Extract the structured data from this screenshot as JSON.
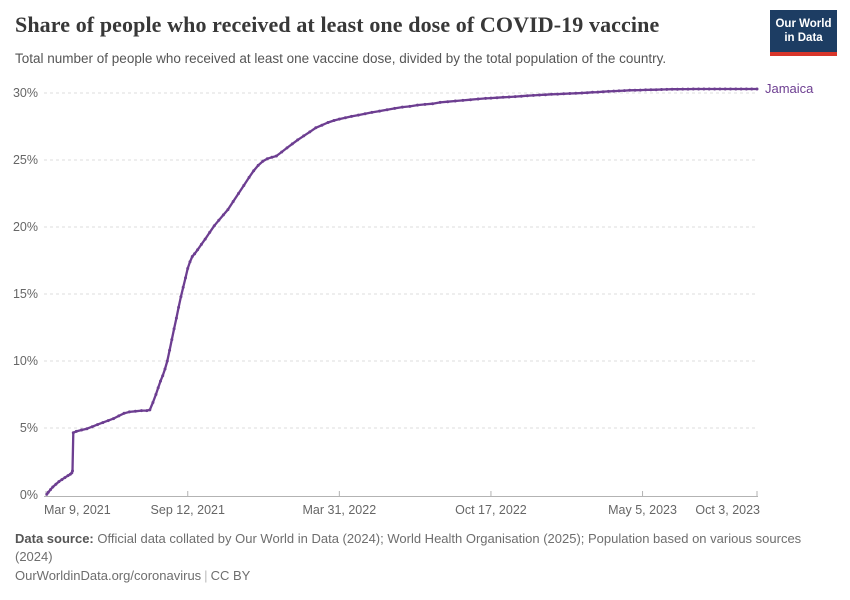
{
  "header": {
    "title": "Share of people who received at least one dose of COVID-19 vaccine",
    "subtitle": "Total number of people who received at least one vaccine dose, divided by the total population of the country.",
    "logo": {
      "line1": "Our World",
      "line2": "in Data"
    }
  },
  "chart_data": {
    "type": "line",
    "title": "Share of people who received at least one dose of COVID-19 vaccine",
    "grid": "horizontal dashed",
    "legend_position": "end-of-line label",
    "ylim": [
      0,
      30.5
    ],
    "ylabel": "",
    "xlabel": "",
    "x_unit": "days since 2021-03-09",
    "x_range_days": 938,
    "yticks": [
      {
        "v": 0,
        "label": "0%"
      },
      {
        "v": 5,
        "label": "5%"
      },
      {
        "v": 10,
        "label": "10%"
      },
      {
        "v": 15,
        "label": "15%"
      },
      {
        "v": 20,
        "label": "20%"
      },
      {
        "v": 25,
        "label": "25%"
      },
      {
        "v": 30,
        "label": "30%"
      }
    ],
    "xticks": [
      {
        "d": 0,
        "label": "Mar 9, 2021"
      },
      {
        "d": 187,
        "label": "Sep 12, 2021"
      },
      {
        "d": 387,
        "label": "Mar 31, 2022"
      },
      {
        "d": 587,
        "label": "Oct 17, 2022"
      },
      {
        "d": 787,
        "label": "May 5, 2023"
      },
      {
        "d": 938,
        "label": "Oct 3, 2023"
      }
    ],
    "series": [
      {
        "name": "Jamaica",
        "color": "#6d3e91",
        "points": [
          [
            1,
            0.05
          ],
          [
            3,
            0.2
          ],
          [
            6,
            0.4
          ],
          [
            9,
            0.6
          ],
          [
            13,
            0.8
          ],
          [
            17,
            1.0
          ],
          [
            21,
            1.15
          ],
          [
            25,
            1.3
          ],
          [
            29,
            1.45
          ],
          [
            32,
            1.55
          ],
          [
            34,
            1.65
          ],
          [
            35,
            1.8
          ],
          [
            36,
            4.65
          ],
          [
            40,
            4.75
          ],
          [
            47,
            4.85
          ],
          [
            54,
            4.95
          ],
          [
            61,
            5.1
          ],
          [
            68,
            5.25
          ],
          [
            75,
            5.4
          ],
          [
            82,
            5.55
          ],
          [
            89,
            5.7
          ],
          [
            96,
            5.9
          ],
          [
            103,
            6.1
          ],
          [
            110,
            6.2
          ],
          [
            118,
            6.25
          ],
          [
            126,
            6.3
          ],
          [
            133,
            6.3
          ],
          [
            137,
            6.35
          ],
          [
            141,
            6.9
          ],
          [
            145,
            7.5
          ],
          [
            148,
            8.0
          ],
          [
            151,
            8.5
          ],
          [
            154,
            8.9
          ],
          [
            157,
            9.4
          ],
          [
            160,
            10.0
          ],
          [
            163,
            10.8
          ],
          [
            166,
            11.6
          ],
          [
            169,
            12.4
          ],
          [
            172,
            13.2
          ],
          [
            175,
            14.0
          ],
          [
            178,
            14.8
          ],
          [
            181,
            15.5
          ],
          [
            184,
            16.2
          ],
          [
            187,
            16.9
          ],
          [
            190,
            17.4
          ],
          [
            193,
            17.8
          ],
          [
            196,
            18.0
          ],
          [
            200,
            18.3
          ],
          [
            205,
            18.7
          ],
          [
            210,
            19.1
          ],
          [
            216,
            19.6
          ],
          [
            222,
            20.1
          ],
          [
            228,
            20.5
          ],
          [
            234,
            20.9
          ],
          [
            240,
            21.3
          ],
          [
            247,
            21.9
          ],
          [
            254,
            22.5
          ],
          [
            261,
            23.1
          ],
          [
            268,
            23.7
          ],
          [
            274,
            24.2
          ],
          [
            280,
            24.6
          ],
          [
            286,
            24.9
          ],
          [
            292,
            25.1
          ],
          [
            298,
            25.2
          ],
          [
            304,
            25.3
          ],
          [
            311,
            25.6
          ],
          [
            318,
            25.9
          ],
          [
            325,
            26.2
          ],
          [
            332,
            26.5
          ],
          [
            340,
            26.8
          ],
          [
            348,
            27.1
          ],
          [
            356,
            27.4
          ],
          [
            364,
            27.6
          ],
          [
            372,
            27.8
          ],
          [
            380,
            27.95
          ],
          [
            387,
            28.05
          ],
          [
            395,
            28.15
          ],
          [
            403,
            28.25
          ],
          [
            412,
            28.35
          ],
          [
            421,
            28.45
          ],
          [
            430,
            28.55
          ],
          [
            440,
            28.65
          ],
          [
            450,
            28.75
          ],
          [
            460,
            28.85
          ],
          [
            470,
            28.95
          ],
          [
            480,
            29.0
          ],
          [
            490,
            29.1
          ],
          [
            500,
            29.15
          ],
          [
            510,
            29.2
          ],
          [
            520,
            29.3
          ],
          [
            530,
            29.35
          ],
          [
            540,
            29.4
          ],
          [
            550,
            29.45
          ],
          [
            560,
            29.5
          ],
          [
            570,
            29.55
          ],
          [
            580,
            29.6
          ],
          [
            587,
            29.62
          ],
          [
            595,
            29.65
          ],
          [
            603,
            29.68
          ],
          [
            611,
            29.7
          ],
          [
            619,
            29.73
          ],
          [
            627,
            29.76
          ],
          [
            635,
            29.8
          ],
          [
            643,
            29.82
          ],
          [
            651,
            29.85
          ],
          [
            659,
            29.87
          ],
          [
            667,
            29.9
          ],
          [
            675,
            29.92
          ],
          [
            683,
            29.94
          ],
          [
            691,
            29.96
          ],
          [
            699,
            29.98
          ],
          [
            707,
            30.0
          ],
          [
            714,
            30.02
          ],
          [
            721,
            30.05
          ],
          [
            728,
            30.07
          ],
          [
            735,
            30.1
          ],
          [
            742,
            30.12
          ],
          [
            749,
            30.14
          ],
          [
            756,
            30.16
          ],
          [
            763,
            30.18
          ],
          [
            770,
            30.2
          ],
          [
            777,
            30.21
          ],
          [
            784,
            30.22
          ],
          [
            791,
            30.23
          ],
          [
            798,
            30.24
          ],
          [
            805,
            30.25
          ],
          [
            812,
            30.26
          ],
          [
            819,
            30.27
          ],
          [
            826,
            30.28
          ],
          [
            833,
            30.28
          ],
          [
            840,
            30.29
          ],
          [
            847,
            30.29
          ],
          [
            854,
            30.3
          ],
          [
            861,
            30.3
          ],
          [
            868,
            30.3
          ],
          [
            875,
            30.3
          ],
          [
            882,
            30.3
          ],
          [
            889,
            30.3
          ],
          [
            896,
            30.3
          ],
          [
            903,
            30.3
          ],
          [
            910,
            30.3
          ],
          [
            917,
            30.3
          ],
          [
            924,
            30.3
          ],
          [
            931,
            30.3
          ],
          [
            938,
            30.3
          ]
        ]
      }
    ]
  },
  "footer": {
    "source_bold": "Data source:",
    "source_rest": " Official data collated by Our World in Data (2024); World Health Organisation (2025); Population based on various sources (2024)",
    "link_text": "OurWorldinData.org/coronavirus",
    "separator": "|",
    "license_text": "CC BY"
  },
  "colors": {
    "series_purple": "#6d3e91",
    "logo_navy": "#1d3d63",
    "logo_red": "#d8352a",
    "grid_gray": "#dcdcdc",
    "axis_gray": "#b3b3b3",
    "tick_label_gray": "#666666"
  }
}
